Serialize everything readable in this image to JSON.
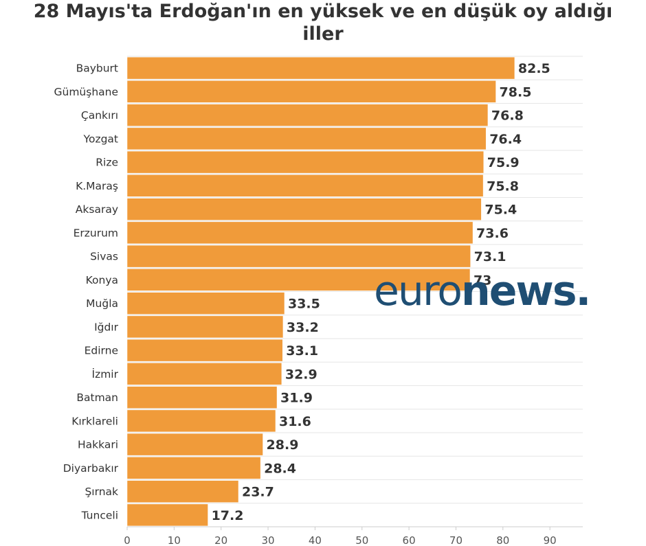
{
  "chart_data": {
    "type": "bar",
    "orientation": "horizontal",
    "title_lines": [
      "28 Mayıs'ta Erdoğan'ın en yüksek ve en düşük oy aldığı",
      "iller"
    ],
    "categories": [
      "Bayburt",
      "Gümüşhane",
      "Çankırı",
      "Yozgat",
      "Rize",
      "K.Maraş",
      "Aksaray",
      "Erzurum",
      "Sivas",
      "Konya",
      "Muğla",
      "Iğdır",
      "Edirne",
      "İzmir",
      "Batman",
      "Kırklareli",
      "Hakkari",
      "Diyarbakır",
      "Şırnak",
      "Tunceli"
    ],
    "values": [
      82.5,
      78.5,
      76.8,
      76.4,
      75.9,
      75.8,
      75.4,
      73.6,
      73.1,
      73,
      33.5,
      33.2,
      33.1,
      32.9,
      31.9,
      31.6,
      28.9,
      28.4,
      23.7,
      17.2
    ],
    "x_ticks": [
      "0",
      "10",
      "20",
      "30",
      "40",
      "50",
      "60",
      "70",
      "80",
      "90"
    ],
    "xlim": [
      0,
      97
    ],
    "bar_color": "#f09b3a",
    "grid": true
  },
  "watermark": {
    "part1": "euro",
    "part2": "news."
  }
}
